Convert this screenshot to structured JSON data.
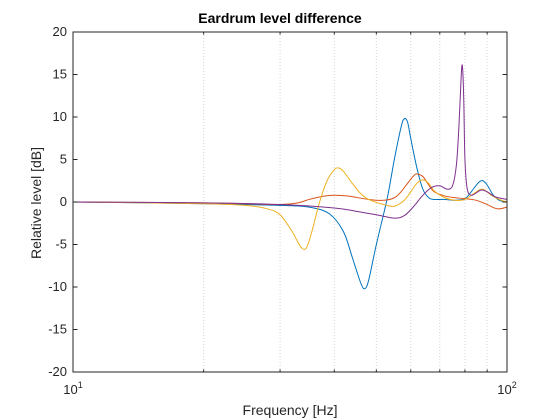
{
  "chart_data": {
    "type": "line",
    "title": "Eardrum level difference",
    "xlabel": "Frequency [Hz]",
    "ylabel": "Relative level [dB]",
    "xscale": "log",
    "xlim": [
      10,
      100
    ],
    "ylim": [
      -20,
      20
    ],
    "grid": "x-minor-dotted",
    "xticks": [
      {
        "value": 10,
        "base": "10",
        "exp": "1"
      },
      {
        "value": 100,
        "base": "10",
        "exp": "2"
      }
    ],
    "yticks": [
      -20,
      -15,
      -10,
      -5,
      0,
      5,
      10,
      15,
      20
    ],
    "series": [
      {
        "color": "#0072BD",
        "points": [
          [
            10,
            0
          ],
          [
            15,
            -0.1
          ],
          [
            20,
            -0.2
          ],
          [
            25,
            -0.3
          ],
          [
            30,
            -0.4
          ],
          [
            35,
            -0.6
          ],
          [
            39,
            -1.4
          ],
          [
            42,
            -3.5
          ],
          [
            44,
            -6.5
          ],
          [
            46,
            -9.5
          ],
          [
            47,
            -10.2
          ],
          [
            48,
            -9.2
          ],
          [
            50,
            -5
          ],
          [
            53,
            0.5
          ],
          [
            55,
            5
          ],
          [
            57,
            8.8
          ],
          [
            58,
            9.8
          ],
          [
            59,
            9.4
          ],
          [
            60,
            7.5
          ],
          [
            62,
            4
          ],
          [
            64,
            1.5
          ],
          [
            66,
            0.5
          ],
          [
            68,
            0.3
          ],
          [
            72,
            0.3
          ],
          [
            76,
            0.2
          ],
          [
            80,
            0.4
          ],
          [
            83,
            1.3
          ],
          [
            86,
            2.3
          ],
          [
            88,
            2.5
          ],
          [
            90,
            2
          ],
          [
            93,
            0.8
          ],
          [
            96,
            0.2
          ],
          [
            100,
            0
          ]
        ]
      },
      {
        "color": "#D95319",
        "points": [
          [
            10,
            0
          ],
          [
            20,
            -0.1
          ],
          [
            25,
            -0.2
          ],
          [
            30,
            -0.3
          ],
          [
            33,
            -0.1
          ],
          [
            35,
            0.3
          ],
          [
            38,
            0.7
          ],
          [
            40,
            0.8
          ],
          [
            43,
            0.7
          ],
          [
            48,
            0.3
          ],
          [
            52,
            0.2
          ],
          [
            55,
            0.5
          ],
          [
            57,
            1.2
          ],
          [
            59,
            2.2
          ],
          [
            61,
            3.1
          ],
          [
            62,
            3.3
          ],
          [
            64,
            3
          ],
          [
            66,
            2
          ],
          [
            68,
            1.2
          ],
          [
            72,
            0.7
          ],
          [
            76,
            0.5
          ],
          [
            80,
            0.4
          ],
          [
            85,
            0.2
          ],
          [
            90,
            -0.3
          ],
          [
            95,
            -0.8
          ],
          [
            100,
            -0.6
          ]
        ]
      },
      {
        "color": "#EDB120",
        "points": [
          [
            10,
            0
          ],
          [
            20,
            -0.2
          ],
          [
            25,
            -0.4
          ],
          [
            28,
            -0.8
          ],
          [
            30,
            -1.5
          ],
          [
            32,
            -3.5
          ],
          [
            33.5,
            -5.3
          ],
          [
            34.5,
            -5.4
          ],
          [
            35.5,
            -3.5
          ],
          [
            37,
            0
          ],
          [
            38.5,
            2.5
          ],
          [
            40,
            3.8
          ],
          [
            41,
            4
          ],
          [
            42,
            3.6
          ],
          [
            44,
            2.2
          ],
          [
            46,
            1
          ],
          [
            48,
            0.3
          ],
          [
            52,
            -0.3
          ],
          [
            55,
            -0.5
          ],
          [
            58,
            0.2
          ],
          [
            60,
            1.2
          ],
          [
            62,
            2.2
          ],
          [
            64,
            2.6
          ],
          [
            66,
            2.2
          ],
          [
            68,
            1.3
          ],
          [
            72,
            0.5
          ],
          [
            76,
            0.2
          ],
          [
            80,
            0.3
          ],
          [
            85,
            1.2
          ],
          [
            88,
            1.5
          ],
          [
            92,
            0.8
          ],
          [
            96,
            0.3
          ],
          [
            100,
            0
          ]
        ]
      },
      {
        "color": "#7E2F8E",
        "points": [
          [
            10,
            0
          ],
          [
            20,
            -0.1
          ],
          [
            30,
            -0.3
          ],
          [
            40,
            -0.7
          ],
          [
            45,
            -1.1
          ],
          [
            50,
            -1.5
          ],
          [
            55,
            -1.9
          ],
          [
            58,
            -1.6
          ],
          [
            61,
            -0.5
          ],
          [
            64,
            0.8
          ],
          [
            67,
            1.7
          ],
          [
            70,
            1.9
          ],
          [
            73,
            1.5
          ],
          [
            75,
            2
          ],
          [
            76.5,
            4.5
          ],
          [
            77.5,
            9
          ],
          [
            78.5,
            15.2
          ],
          [
            79,
            15.8
          ],
          [
            79.5,
            12
          ],
          [
            80,
            5
          ],
          [
            81,
            1.5
          ],
          [
            83,
            0.8
          ],
          [
            87,
            1.4
          ],
          [
            90,
            1.2
          ],
          [
            94,
            0.6
          ],
          [
            100,
            0.3
          ]
        ]
      }
    ]
  }
}
